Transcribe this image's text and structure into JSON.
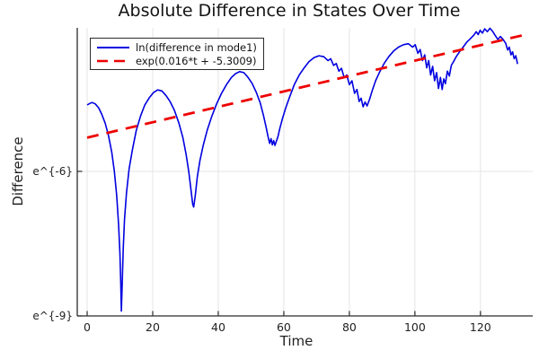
{
  "chart": {
    "title": "Absolute Difference in States Over Time",
    "xlabel": "Time",
    "ylabel": "Difference"
  },
  "legend": {
    "items": [
      {
        "label": "ln(difference in mode1)",
        "color": "#0000e0",
        "style": "solid"
      },
      {
        "label": "exp(0.016*t + -5.3009)",
        "color": "#ee0000",
        "style": "dashed"
      }
    ]
  },
  "chart_data": {
    "type": "line",
    "title": "Absolute Difference in States Over Time",
    "xlabel": "Time",
    "ylabel": "Difference",
    "x_ticks": [
      0,
      20,
      40,
      60,
      80,
      100,
      120
    ],
    "y_ticks": [
      {
        "label": "e^{-6}",
        "value_ln": -6
      },
      {
        "label": "e^{-9}",
        "value_ln": -9
      }
    ],
    "xlim": [
      -3.02,
      135.94
    ],
    "ylim_ln": [
      -9.0,
      -3.02
    ],
    "grid": true,
    "legend_position": "top-left",
    "colors": {
      "grid": "#e4e4e4",
      "axis": "#2b2b2b",
      "text": "#222222"
    },
    "series": [
      {
        "name": "ln(difference in mode1)",
        "color": "#0000e0",
        "style": "solid",
        "points_t_ln": [
          [
            0,
            -4.62
          ],
          [
            0.8,
            -4.59
          ],
          [
            1.5,
            -4.57
          ],
          [
            2.5,
            -4.6
          ],
          [
            3.5,
            -4.68
          ],
          [
            4.5,
            -4.82
          ],
          [
            5.5,
            -5.0
          ],
          [
            6.5,
            -5.25
          ],
          [
            7.5,
            -5.6
          ],
          [
            8.3,
            -6.0
          ],
          [
            9,
            -6.5
          ],
          [
            9.6,
            -7.1
          ],
          [
            10,
            -7.7
          ],
          [
            10.25,
            -8.3
          ],
          [
            10.45,
            -8.9
          ],
          [
            10.7,
            -8.3
          ],
          [
            11,
            -7.6
          ],
          [
            11.4,
            -7.0
          ],
          [
            12,
            -6.45
          ],
          [
            12.8,
            -5.95
          ],
          [
            13.8,
            -5.55
          ],
          [
            15,
            -5.15
          ],
          [
            16.3,
            -4.85
          ],
          [
            17.6,
            -4.62
          ],
          [
            19,
            -4.47
          ],
          [
            20.3,
            -4.36
          ],
          [
            21.5,
            -4.31
          ],
          [
            22.8,
            -4.33
          ],
          [
            24,
            -4.42
          ],
          [
            25.3,
            -4.55
          ],
          [
            26.6,
            -4.73
          ],
          [
            28,
            -5.0
          ],
          [
            29.2,
            -5.3
          ],
          [
            30.2,
            -5.65
          ],
          [
            31,
            -6.0
          ],
          [
            31.7,
            -6.4
          ],
          [
            32.2,
            -6.68
          ],
          [
            32.5,
            -6.74
          ],
          [
            33,
            -6.5
          ],
          [
            33.6,
            -6.12
          ],
          [
            34.4,
            -5.78
          ],
          [
            35.4,
            -5.46
          ],
          [
            36.6,
            -5.15
          ],
          [
            38,
            -4.86
          ],
          [
            39.5,
            -4.6
          ],
          [
            41,
            -4.38
          ],
          [
            42.5,
            -4.2
          ],
          [
            44,
            -4.05
          ],
          [
            45.3,
            -3.97
          ],
          [
            46.5,
            -3.93
          ],
          [
            47.8,
            -3.95
          ],
          [
            49,
            -4.04
          ],
          [
            50.3,
            -4.17
          ],
          [
            51.6,
            -4.36
          ],
          [
            52.8,
            -4.58
          ],
          [
            53.8,
            -4.84
          ],
          [
            54.6,
            -5.08
          ],
          [
            55.2,
            -5.28
          ],
          [
            55.7,
            -5.42
          ],
          [
            56.1,
            -5.32
          ],
          [
            56.5,
            -5.45
          ],
          [
            56.9,
            -5.36
          ],
          [
            57.3,
            -5.46
          ],
          [
            57.7,
            -5.38
          ],
          [
            58.2,
            -5.28
          ],
          [
            58.8,
            -5.1
          ],
          [
            59.6,
            -4.9
          ],
          [
            60.6,
            -4.68
          ],
          [
            61.8,
            -4.45
          ],
          [
            63.2,
            -4.2
          ],
          [
            64.7,
            -4.0
          ],
          [
            66.2,
            -3.85
          ],
          [
            67.7,
            -3.72
          ],
          [
            69.2,
            -3.64
          ],
          [
            70.7,
            -3.6
          ],
          [
            72.2,
            -3.62
          ],
          [
            73.5,
            -3.7
          ],
          [
            74.3,
            -3.66
          ],
          [
            75.2,
            -3.8
          ],
          [
            76,
            -3.76
          ],
          [
            76.8,
            -3.92
          ],
          [
            77.6,
            -3.86
          ],
          [
            78.4,
            -4.05
          ],
          [
            79.2,
            -4.0
          ],
          [
            80,
            -4.2
          ],
          [
            80.8,
            -4.12
          ],
          [
            81.6,
            -4.38
          ],
          [
            82.3,
            -4.3
          ],
          [
            83,
            -4.55
          ],
          [
            83.6,
            -4.48
          ],
          [
            84.2,
            -4.66
          ],
          [
            84.8,
            -4.56
          ],
          [
            85.4,
            -4.64
          ],
          [
            86.2,
            -4.5
          ],
          [
            87,
            -4.32
          ],
          [
            88,
            -4.12
          ],
          [
            89.2,
            -3.94
          ],
          [
            90.6,
            -3.76
          ],
          [
            92,
            -3.62
          ],
          [
            93.5,
            -3.5
          ],
          [
            95,
            -3.42
          ],
          [
            96.5,
            -3.37
          ],
          [
            98,
            -3.35
          ],
          [
            99.3,
            -3.42
          ],
          [
            100.1,
            -3.37
          ],
          [
            100.9,
            -3.55
          ],
          [
            101.6,
            -3.47
          ],
          [
            102.3,
            -3.7
          ],
          [
            103,
            -3.58
          ],
          [
            103.6,
            -3.85
          ],
          [
            104.2,
            -3.7
          ],
          [
            104.8,
            -4.0
          ],
          [
            105.4,
            -3.82
          ],
          [
            106,
            -4.12
          ],
          [
            106.6,
            -3.95
          ],
          [
            107.2,
            -4.28
          ],
          [
            107.8,
            -4.05
          ],
          [
            108.3,
            -4.3
          ],
          [
            108.8,
            -4.08
          ],
          [
            109.3,
            -4.18
          ],
          [
            109.9,
            -3.92
          ],
          [
            110.5,
            -4.02
          ],
          [
            111.1,
            -3.8
          ],
          [
            111.8,
            -3.72
          ],
          [
            112.6,
            -3.62
          ],
          [
            113.6,
            -3.52
          ],
          [
            114.7,
            -3.42
          ],
          [
            115.8,
            -3.32
          ],
          [
            117,
            -3.24
          ],
          [
            118,
            -3.17
          ],
          [
            118.7,
            -3.1
          ],
          [
            119.3,
            -3.16
          ],
          [
            119.9,
            -3.07
          ],
          [
            120.6,
            -3.13
          ],
          [
            121.3,
            -3.04
          ],
          [
            122.1,
            -3.1
          ],
          [
            122.9,
            -3.03
          ],
          [
            123.7,
            -3.09
          ],
          [
            124.5,
            -3.18
          ],
          [
            125.3,
            -3.26
          ],
          [
            126.1,
            -3.2
          ],
          [
            126.9,
            -3.26
          ],
          [
            127.7,
            -3.34
          ],
          [
            128.3,
            -3.48
          ],
          [
            128.8,
            -3.42
          ],
          [
            129.3,
            -3.58
          ],
          [
            129.8,
            -3.52
          ],
          [
            130.3,
            -3.66
          ],
          [
            130.8,
            -3.6
          ],
          [
            131.3,
            -3.77
          ]
        ]
      },
      {
        "name": "exp(0.016*t + -5.3009)",
        "color": "#ee0000",
        "style": "dashed",
        "slope": 0.016,
        "intercept": -5.3009,
        "points_t_ln": [
          [
            0,
            -5.3009
          ],
          [
            133,
            -3.1729
          ]
        ]
      }
    ]
  }
}
